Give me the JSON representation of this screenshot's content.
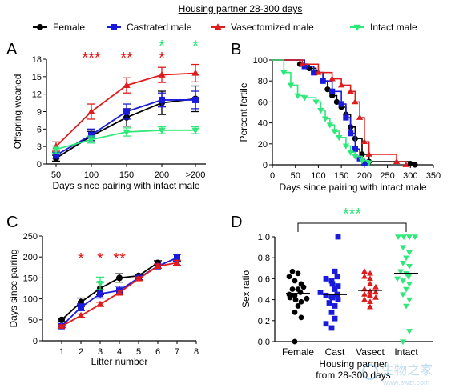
{
  "figure": {
    "title": "Housing partner 28-300 days",
    "legend": [
      {
        "label": "Female",
        "color": "#000000",
        "marker": "circle"
      },
      {
        "label": "Castrated male",
        "color": "#1a1adc",
        "marker": "square"
      },
      {
        "label": "Vasectomized male",
        "color": "#e01b1b",
        "marker": "triangle-up"
      },
      {
        "label": "Intact male",
        "color": "#2ee87a",
        "marker": "triangle-down"
      }
    ],
    "watermark": "生物之家 www.swzj.com"
  },
  "chart_data": [
    {
      "panel": "A",
      "type": "line",
      "xlabel": "Days since pairing with intact male",
      "ylabel": "Offspring weaned",
      "categories": [
        "50",
        "100",
        "150",
        "200",
        ">200"
      ],
      "ylim": [
        0,
        18
      ],
      "yticks": [
        0,
        3,
        6,
        9,
        12,
        15,
        18
      ],
      "series": [
        {
          "name": "Female",
          "values": [
            1.0,
            4.8,
            8.0,
            10.5,
            11.2
          ],
          "err": [
            0.5,
            0.8,
            1.5,
            2.0,
            2.2
          ]
        },
        {
          "name": "Castrated male",
          "values": [
            1.5,
            5.0,
            9.0,
            11.0,
            11.0
          ],
          "err": [
            0.5,
            1.0,
            1.3,
            1.2,
            1.5
          ]
        },
        {
          "name": "Vasectomized male",
          "values": [
            3.0,
            9.0,
            13.5,
            15.3,
            15.6
          ],
          "err": [
            0.8,
            1.3,
            1.3,
            1.3,
            1.5
          ]
        },
        {
          "name": "Intact male",
          "values": [
            2.5,
            4.2,
            5.5,
            5.8,
            5.8
          ],
          "err": [
            0.6,
            0.6,
            0.7,
            0.6,
            0.6
          ]
        }
      ],
      "annotations": [
        {
          "text": "***",
          "x": "100",
          "color": "#e01b1b",
          "row": 0
        },
        {
          "text": "**",
          "x": "150",
          "color": "#e01b1b",
          "row": 0
        },
        {
          "text": "*",
          "x": "200",
          "color": "#2ee87a",
          "row": 1
        },
        {
          "text": "*",
          "x": "200",
          "color": "#e01b1b",
          "row": 0
        },
        {
          "text": "*",
          "x": ">200",
          "color": "#2ee87a",
          "row": 1
        }
      ]
    },
    {
      "panel": "B",
      "type": "line",
      "step": true,
      "xlabel": "Days since pairing with intact male",
      "ylabel": "Percent fertile",
      "xlim": [
        0,
        350
      ],
      "xticks": [
        0,
        50,
        100,
        150,
        200,
        250,
        300,
        350
      ],
      "ylim": [
        0,
        100
      ],
      "yticks": [
        0,
        20,
        40,
        60,
        80,
        100
      ],
      "series": [
        {
          "name": "Female",
          "points": [
            [
              0,
              100
            ],
            [
              60,
              96
            ],
            [
              80,
              92
            ],
            [
              95,
              88
            ],
            [
              110,
              80
            ],
            [
              120,
              72
            ],
            [
              130,
              66
            ],
            [
              140,
              60
            ],
            [
              150,
              55
            ],
            [
              160,
              48
            ],
            [
              170,
              36
            ],
            [
              180,
              25
            ],
            [
              195,
              10
            ],
            [
              210,
              3
            ],
            [
              300,
              1
            ],
            [
              310,
              0
            ]
          ]
        },
        {
          "name": "Castrated male",
          "points": [
            [
              0,
              100
            ],
            [
              70,
              94
            ],
            [
              90,
              88
            ],
            [
              110,
              80
            ],
            [
              130,
              70
            ],
            [
              150,
              58
            ],
            [
              160,
              45
            ],
            [
              170,
              30
            ],
            [
              180,
              15
            ],
            [
              190,
              6
            ],
            [
              200,
              2
            ]
          ]
        },
        {
          "name": "Vasectomized male",
          "points": [
            [
              0,
              100
            ],
            [
              65,
              96
            ],
            [
              100,
              88
            ],
            [
              130,
              82
            ],
            [
              150,
              76
            ],
            [
              170,
              70
            ],
            [
              180,
              60
            ],
            [
              190,
              45
            ],
            [
              200,
              22
            ],
            [
              210,
              10
            ],
            [
              270,
              3
            ],
            [
              290,
              0
            ]
          ]
        },
        {
          "name": "Intact male",
          "points": [
            [
              0,
              100
            ],
            [
              25,
              88
            ],
            [
              40,
              76
            ],
            [
              55,
              66
            ],
            [
              70,
              64
            ],
            [
              95,
              60
            ],
            [
              105,
              52
            ],
            [
              115,
              44
            ],
            [
              125,
              38
            ],
            [
              135,
              32
            ],
            [
              145,
              26
            ],
            [
              160,
              18
            ],
            [
              170,
              12
            ],
            [
              180,
              8
            ],
            [
              195,
              4
            ],
            [
              210,
              2
            ]
          ]
        }
      ]
    },
    {
      "panel": "C",
      "type": "line",
      "xlabel": "Litter number",
      "ylabel": "Days since pairing",
      "xlim": [
        0,
        8
      ],
      "xticks": [
        1,
        2,
        3,
        4,
        5,
        6,
        7,
        8
      ],
      "ylim": [
        0,
        250
      ],
      "yticks": [
        0,
        50,
        100,
        150,
        200,
        250
      ],
      "series": [
        {
          "name": "Female",
          "x": [
            1,
            2,
            3,
            4,
            5,
            6
          ],
          "values": [
            50,
            92,
            125,
            150,
            155,
            186
          ],
          "err": [
            4,
            10,
            15,
            10,
            3,
            5
          ]
        },
        {
          "name": "Castrated male",
          "x": [
            1,
            2,
            3,
            4,
            5,
            6,
            7
          ],
          "values": [
            35,
            80,
            112,
            120,
            150,
            178,
            198
          ],
          "err": [
            3,
            8,
            10,
            10,
            4,
            5,
            8
          ]
        },
        {
          "name": "Vasectomized male",
          "x": [
            1,
            2,
            3,
            4,
            5,
            6,
            7
          ],
          "values": [
            35,
            60,
            87,
            115,
            148,
            178,
            186
          ],
          "err": [
            3,
            4,
            5,
            6,
            4,
            5,
            6
          ]
        },
        {
          "name": "Intact male",
          "x": [
            3
          ],
          "values": [
            137
          ],
          "err": [
            15
          ]
        }
      ],
      "annotations": [
        {
          "text": "*",
          "x": 2,
          "color": "#e01b1b"
        },
        {
          "text": "*",
          "x": 3,
          "color": "#e01b1b"
        },
        {
          "text": "**",
          "x": 4,
          "color": "#e01b1b"
        }
      ]
    },
    {
      "panel": "D",
      "type": "scatter",
      "xlabel": "Housing partner from 28-300 days",
      "ylabel": "Sex ratio",
      "categories": [
        "Female",
        "Cast",
        "Vasect",
        "Intact"
      ],
      "ylim": [
        0,
        1.0
      ],
      "yticks": [
        0.0,
        0.2,
        0.4,
        0.6,
        0.8,
        1.0
      ],
      "means": [
        0.46,
        0.45,
        0.49,
        0.65
      ],
      "groups": [
        {
          "name": "Female",
          "values": [
            0.0,
            0.23,
            0.28,
            0.34,
            0.38,
            0.4,
            0.41,
            0.42,
            0.44,
            0.45,
            0.47,
            0.5,
            0.5,
            0.52,
            0.55,
            0.58,
            0.62,
            0.65,
            0.67
          ]
        },
        {
          "name": "Cast",
          "values": [
            0.13,
            0.17,
            0.22,
            0.28,
            0.34,
            0.37,
            0.4,
            0.42,
            0.43,
            0.44,
            0.45,
            0.47,
            0.5,
            0.53,
            0.55,
            0.58,
            0.6,
            0.62,
            0.67,
            1.0
          ]
        },
        {
          "name": "Vasect",
          "values": [
            0.33,
            0.38,
            0.4,
            0.42,
            0.44,
            0.45,
            0.47,
            0.48,
            0.5,
            0.52,
            0.55,
            0.6,
            0.62,
            0.65,
            0.67
          ]
        },
        {
          "name": "Intact",
          "values": [
            0.0,
            0.1,
            0.34,
            0.4,
            0.45,
            0.5,
            0.55,
            0.58,
            0.6,
            0.62,
            0.65,
            0.67,
            0.72,
            0.75,
            0.8,
            0.85,
            0.9,
            1.0,
            1.0,
            1.0,
            1.0
          ]
        }
      ],
      "annotation": {
        "text": "***",
        "color": "#2ee87a",
        "from": "Female",
        "to": "Intact"
      }
    }
  ]
}
